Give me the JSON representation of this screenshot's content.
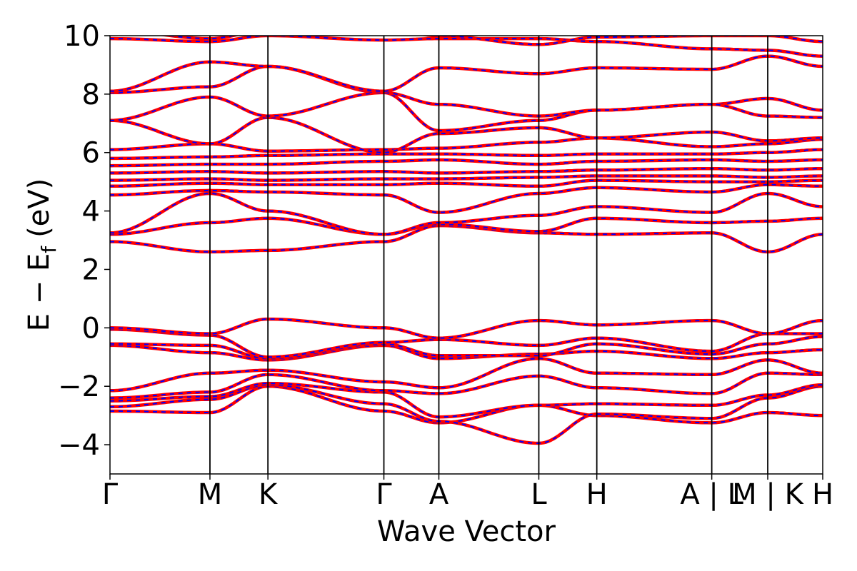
{
  "chart_data": {
    "type": "line",
    "xlabel": "Wave Vector",
    "ylabel": "E − E",
    "ylabel_sub": "f",
    "ylabel_unit": "(eV)",
    "ylim": [
      -5,
      10
    ],
    "yticks": [
      "−4",
      "−2",
      "0",
      "2",
      "4",
      "6",
      "8",
      "10"
    ],
    "ytick_values": [
      -4,
      -2,
      0,
      2,
      4,
      6,
      8,
      10
    ],
    "path_breaks": [
      0,
      1.0,
      1.58,
      2.74,
      3.29,
      4.29,
      4.87,
      6.02,
      6.58,
      7.13
    ],
    "xticks": [
      {
        "label": "Γ",
        "x": 0
      },
      {
        "label": "M",
        "x": 1.0
      },
      {
        "label": "K",
        "x": 1.58
      },
      {
        "label": "Γ",
        "x": 2.74
      },
      {
        "label": "A",
        "x": 3.29
      },
      {
        "label": "L",
        "x": 4.29
      },
      {
        "label": "H",
        "x": 4.87
      },
      {
        "label": "A | L",
        "x": 6.02
      },
      {
        "label": "M | K",
        "x": 6.58
      },
      {
        "label": "H",
        "x": 7.13
      }
    ],
    "series_style": {
      "outer_color": "#ff0000",
      "inner_color": "#0000ff",
      "inner_dash": true
    },
    "bands_sampled_at_breaks": [
      [
        -2.85,
        -2.9,
        -2.0,
        -2.85,
        -3.25,
        -2.65,
        -3.0,
        -3.25,
        -2.9,
        -3.0
      ],
      [
        -2.7,
        -2.45,
        -1.95,
        -2.6,
        -3.2,
        -3.95,
        -2.95,
        -3.1,
        -2.4,
        -2.0
      ],
      [
        -2.5,
        -2.35,
        -1.9,
        -2.2,
        -3.05,
        -2.65,
        -2.6,
        -2.65,
        -2.3,
        -1.95
      ],
      [
        -2.4,
        -2.2,
        -1.6,
        -2.15,
        -2.25,
        -1.65,
        -2.05,
        -2.25,
        -1.55,
        -1.6
      ],
      [
        -2.15,
        -1.55,
        -1.45,
        -1.85,
        -2.05,
        -1.05,
        -1.55,
        -1.6,
        -1.1,
        -1.55
      ],
      [
        -0.6,
        -0.85,
        -1.1,
        -0.6,
        -1.05,
        -0.9,
        -0.8,
        -1.05,
        -0.85,
        -0.75
      ],
      [
        -0.55,
        -0.6,
        -1.05,
        -0.55,
        -0.95,
        -0.95,
        -0.55,
        -0.9,
        -0.55,
        -0.3
      ],
      [
        -0.05,
        -0.25,
        -1.0,
        -0.5,
        -0.4,
        -0.6,
        -0.35,
        -0.8,
        -0.2,
        -0.2
      ],
      [
        0.0,
        -0.2,
        0.3,
        0.0,
        -0.35,
        0.25,
        0.1,
        0.25,
        -0.2,
        0.25
      ],
      [
        2.95,
        2.6,
        2.65,
        2.95,
        3.5,
        3.25,
        3.2,
        3.25,
        2.6,
        3.2
      ],
      [
        3.2,
        3.6,
        3.75,
        3.2,
        3.55,
        3.3,
        3.75,
        3.6,
        3.65,
        3.75
      ],
      [
        3.25,
        4.6,
        4.0,
        3.2,
        3.6,
        3.85,
        4.15,
        3.95,
        4.6,
        4.15
      ],
      [
        4.55,
        4.7,
        4.65,
        4.55,
        3.95,
        4.6,
        4.8,
        4.65,
        4.9,
        4.85
      ],
      [
        4.85,
        4.95,
        4.9,
        4.9,
        4.95,
        4.85,
        5.05,
        5.0,
        5.0,
        5.05
      ],
      [
        5.05,
        5.1,
        5.05,
        5.1,
        5.1,
        5.15,
        5.2,
        5.2,
        5.15,
        5.2
      ],
      [
        5.3,
        5.35,
        5.3,
        5.35,
        5.3,
        5.35,
        5.4,
        5.45,
        5.4,
        5.45
      ],
      [
        5.55,
        5.6,
        5.6,
        5.7,
        5.75,
        5.6,
        5.7,
        5.75,
        5.7,
        5.75
      ],
      [
        5.8,
        5.85,
        5.9,
        5.95,
        5.95,
        5.9,
        5.95,
        5.95,
        6.0,
        6.1
      ],
      [
        6.1,
        6.3,
        6.05,
        6.1,
        6.15,
        6.35,
        6.5,
        6.2,
        6.3,
        6.45
      ],
      [
        7.1,
        6.3,
        7.2,
        6.0,
        6.65,
        6.85,
        6.5,
        6.7,
        6.4,
        6.5
      ],
      [
        7.1,
        7.9,
        7.25,
        8.05,
        6.75,
        7.1,
        7.45,
        7.65,
        7.85,
        7.45
      ],
      [
        8.05,
        8.25,
        8.95,
        8.05,
        7.65,
        7.25,
        7.45,
        7.65,
        7.25,
        7.2
      ],
      [
        8.1,
        9.1,
        8.95,
        8.1,
        8.9,
        8.7,
        8.9,
        8.85,
        9.3,
        8.95
      ],
      [
        9.9,
        9.8,
        10.0,
        9.85,
        9.9,
        9.9,
        9.8,
        9.55,
        9.5,
        9.3
      ],
      [
        10.2,
        9.9,
        10.2,
        10.2,
        10.0,
        9.7,
        9.95,
        10.0,
        10.0,
        9.8
      ]
    ]
  }
}
